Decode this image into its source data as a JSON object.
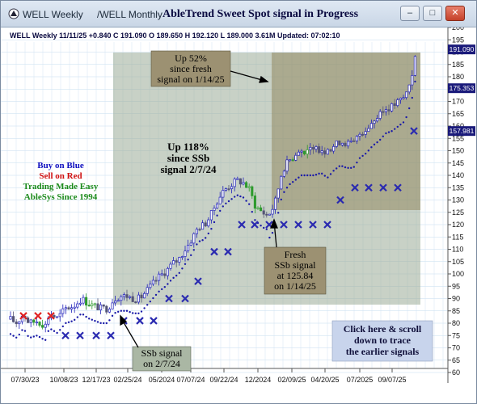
{
  "window": {
    "tabs": [
      {
        "label": "WELL Weekly"
      },
      {
        "label": "/WELL Monthly"
      }
    ],
    "title": "AbleTrend Sweet Spot signal in Progress",
    "buttons": {
      "minimize": "–",
      "restore": "□",
      "close": "✕"
    }
  },
  "quote": {
    "header": "WELL  Weekly 11/11/25 +0.840 C 191.090 O 189.650 H 192.120 L 189.000 3.61M Updated: 07:02:10"
  },
  "price_tags": [
    {
      "value": 191.09,
      "label": "191.090"
    },
    {
      "value": 175.353,
      "label": "175.353"
    },
    {
      "value": 157.981,
      "label": "157.981"
    }
  ],
  "legend": {
    "lines": [
      {
        "text": "Buy on Blue",
        "color": "#1010c0"
      },
      {
        "text": "Sell on Red",
        "color": "#d01010"
      },
      {
        "text": "Trading Made Easy",
        "color": "#1a8a1a"
      },
      {
        "text": "AbleSys Since 1994",
        "color": "#1a8a1a"
      }
    ]
  },
  "annotations": {
    "up52": [
      "Up 52%",
      "since fresh",
      "signal on 1/14/25"
    ],
    "up118": [
      "Up 118%",
      "since SSb",
      "signal 2/7/24"
    ],
    "fresh": [
      "Fresh",
      "SSb signal",
      "at 125.84",
      "on 1/14/25"
    ],
    "ssb": [
      "SSb signal",
      "on 2/7/24"
    ],
    "click": [
      "Click here & scroll",
      "down to trace",
      "the earlier signals"
    ]
  },
  "chart_data": {
    "type": "candlestick",
    "y_range": [
      60,
      200
    ],
    "y_ticks": [
      60,
      65,
      70,
      75,
      80,
      85,
      90,
      95,
      100,
      105,
      110,
      115,
      120,
      125,
      130,
      135,
      140,
      145,
      150,
      155,
      160,
      165,
      170,
      175,
      180,
      185,
      190,
      195,
      200
    ],
    "x_tick_labels": [
      "07/30/23",
      "10/08/23",
      "12/17/23",
      "02/25/24",
      "05/2024",
      "07/07/24",
      "09/22/24",
      "12/2024",
      "02/09/25",
      "04/20/25",
      "07/2025",
      "09/07/25"
    ],
    "grid": true,
    "signals": {
      "sell_red_x_count": 3,
      "buy_blue_x_count": 16
    }
  }
}
